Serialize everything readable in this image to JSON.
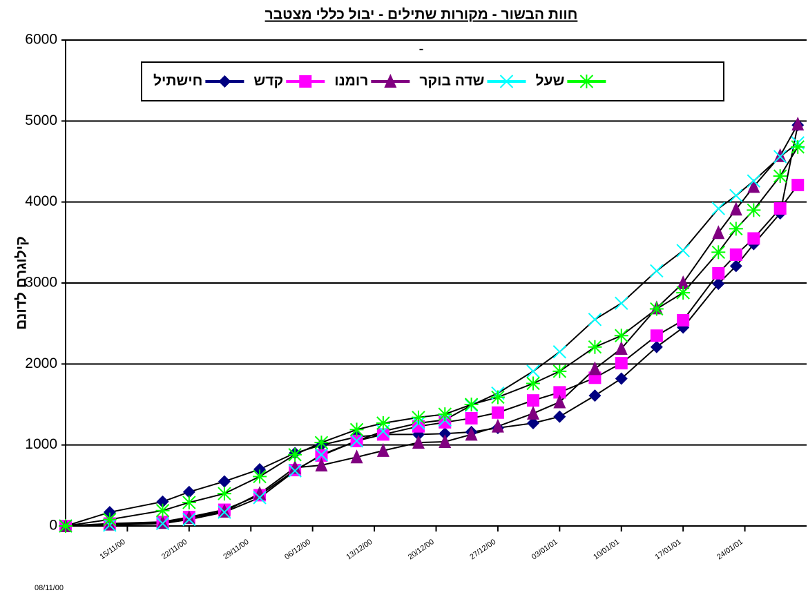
{
  "chart_data": {
    "type": "line",
    "title": "חוות הבשור - מקורות שתילים - יבול כללי מצטבר",
    "subtitle": "-",
    "y_label": "קילוגרם לדונם",
    "x": [
      "08/11/00",
      "13/11/00",
      "19/11/00",
      "22/11/00",
      "26/11/00",
      "30/11/00",
      "04/12/00",
      "07/12/00",
      "11/12/00",
      "14/12/00",
      "18/12/00",
      "21/12/00",
      "24/12/00",
      "27/12/00",
      "31/12/00",
      "03/01/01",
      "07/01/01",
      "10/01/01",
      "14/01/01",
      "17/01/01",
      "21/01/01",
      "23/01/01",
      "25/01/01",
      "28/01/01",
      "30/01/01"
    ],
    "xlim": [
      "08/11/00",
      "31/01/01"
    ],
    "xticks": [
      "08/11/00",
      "15/11/00",
      "22/11/00",
      "29/11/00",
      "06/12/00",
      "13/12/00",
      "20/12/00",
      "27/12/00",
      "03/01/01",
      "10/01/01",
      "17/01/01",
      "24/01/01"
    ],
    "ylim": [
      0,
      6000
    ],
    "yticks": [
      0,
      1000,
      2000,
      3000,
      4000,
      5000,
      6000
    ],
    "grid": true,
    "line_color": "#000000",
    "series": [
      {
        "name": "חישתיל",
        "color": "#000080",
        "marker": "diamond",
        "values": [
          0,
          170,
          300,
          420,
          550,
          700,
          900,
          1000,
          1100,
          1130,
          1130,
          1140,
          1160,
          1210,
          1270,
          1350,
          1610,
          1820,
          2210,
          2450,
          2990,
          3210,
          3480,
          3860,
          4950
        ]
      },
      {
        "name": "קדש",
        "color": "#ff00ff",
        "marker": "square",
        "values": [
          0,
          30,
          50,
          110,
          200,
          380,
          690,
          870,
          1050,
          1130,
          1230,
          1280,
          1330,
          1400,
          1550,
          1650,
          1830,
          2010,
          2350,
          2540,
          3120,
          3350,
          3550,
          3920,
          4210
        ]
      },
      {
        "name": "רומנו",
        "color": "#800080",
        "marker": "triangle",
        "values": [
          0,
          20,
          40,
          100,
          180,
          400,
          720,
          750,
          850,
          930,
          1030,
          1040,
          1130,
          1230,
          1390,
          1530,
          1940,
          2190,
          2690,
          3000,
          3620,
          3910,
          4190,
          4570,
          4960
        ]
      },
      {
        "name": "שדה בוקר",
        "color": "#00ffff",
        "marker": "x",
        "values": [
          0,
          10,
          30,
          80,
          170,
          350,
          680,
          880,
          1050,
          1170,
          1270,
          1310,
          1490,
          1640,
          1910,
          2150,
          2550,
          2750,
          3150,
          3400,
          3920,
          4080,
          4260,
          4560,
          4730
        ]
      },
      {
        "name": "שעל",
        "color": "#00ff00",
        "marker": "star",
        "values": [
          0,
          80,
          190,
          290,
          400,
          610,
          880,
          1030,
          1190,
          1270,
          1340,
          1380,
          1500,
          1590,
          1760,
          1910,
          2210,
          2350,
          2680,
          2880,
          3380,
          3670,
          3900,
          4320,
          4680
        ]
      }
    ]
  }
}
